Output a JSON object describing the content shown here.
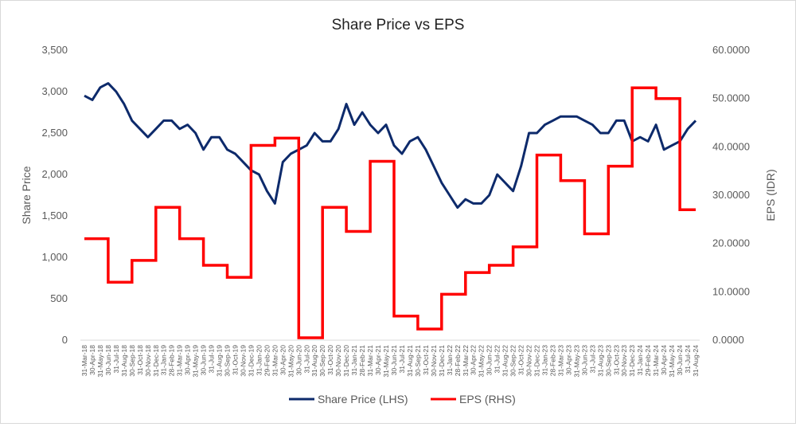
{
  "chart_data": {
    "type": "line",
    "title": "Share Price vs EPS",
    "ylabel_left": "Share Price",
    "ylabel_right": "EPS (IDR)",
    "ylim_left": [
      0,
      3500
    ],
    "ylim_right": [
      0,
      60
    ],
    "yticks_left": [
      "0",
      "500",
      "1,000",
      "1,500",
      "2,000",
      "2,500",
      "3,000",
      "3,500"
    ],
    "yticks_right": [
      "0.0000",
      "10.0000",
      "20.0000",
      "30.0000",
      "40.0000",
      "50.0000",
      "60.0000"
    ],
    "grid": false,
    "legend_position": "bottom",
    "x_labels": [
      "31-Mar-18",
      "30-Apr-18",
      "31-May-18",
      "30-Jun-18",
      "31-Jul-18",
      "31-Aug-18",
      "30-Sep-18",
      "31-Oct-18",
      "30-Nov-18",
      "31-Dec-18",
      "31-Jan-19",
      "28-Feb-19",
      "31-Mar-19",
      "30-Apr-19",
      "31-May-19",
      "30-Jun-19",
      "31-Jul-19",
      "31-Aug-19",
      "30-Sep-19",
      "31-Oct-19",
      "30-Nov-19",
      "31-Dec-19",
      "31-Jan-20",
      "29-Feb-20",
      "31-Mar-20",
      "30-Apr-20",
      "31-May-20",
      "30-Jun-20",
      "31-Jul-20",
      "31-Aug-20",
      "30-Sep-20",
      "31-Oct-20",
      "30-Nov-20",
      "31-Dec-20",
      "31-Jan-21",
      "28-Feb-21",
      "31-Mar-21",
      "30-Apr-21",
      "31-May-21",
      "30-Jun-21",
      "31-Jul-21",
      "31-Aug-21",
      "30-Sep-21",
      "31-Oct-21",
      "30-Nov-21",
      "31-Dec-21",
      "31-Jan-22",
      "28-Feb-22",
      "31-Mar-22",
      "30-Apr-22",
      "31-May-22",
      "30-Jun-22",
      "31-Jul-22",
      "31-Aug-22",
      "30-Sep-22",
      "31-Oct-22",
      "30-Nov-22",
      "31-Dec-22",
      "31-Jan-23",
      "28-Feb-23",
      "31-Mar-23",
      "30-Apr-23",
      "31-May-23",
      "30-Jun-23",
      "31-Jul-23",
      "31-Aug-23",
      "30-Sep-23",
      "31-Oct-23",
      "30-Nov-23",
      "31-Dec-23",
      "31-Jan-24",
      "29-Feb-24",
      "31-Mar-24",
      "30-Apr-24",
      "31-May-24",
      "30-Jun-24",
      "31-Jul-24",
      "31-Aug-24"
    ],
    "series": [
      {
        "name": "Share Price (LHS)",
        "axis": "left",
        "color": "#0d2a6b",
        "x": [
          "31-Mar-18",
          "30-Apr-18",
          "31-May-18",
          "30-Jun-18",
          "31-Jul-18",
          "31-Aug-18",
          "30-Sep-18",
          "31-Oct-18",
          "30-Nov-18",
          "31-Dec-18",
          "31-Jan-19",
          "28-Feb-19",
          "31-Mar-19",
          "30-Apr-19",
          "31-May-19",
          "30-Jun-19",
          "31-Jul-19",
          "31-Aug-19",
          "30-Sep-19",
          "31-Oct-19",
          "30-Nov-19",
          "31-Dec-19",
          "31-Jan-20",
          "29-Feb-20",
          "31-Mar-20",
          "30-Apr-20",
          "31-May-20",
          "30-Jun-20",
          "31-Jul-20",
          "31-Aug-20",
          "30-Sep-20",
          "31-Oct-20",
          "30-Nov-20",
          "31-Dec-20",
          "31-Jan-21",
          "28-Feb-21",
          "31-Mar-21",
          "30-Apr-21",
          "31-May-21",
          "30-Jun-21",
          "31-Jul-21",
          "31-Aug-21",
          "30-Sep-21",
          "31-Oct-21",
          "30-Nov-21",
          "31-Dec-21",
          "31-Jan-22",
          "28-Feb-22",
          "31-Mar-22",
          "30-Apr-22",
          "31-May-22",
          "30-Jun-22",
          "31-Jul-22",
          "31-Aug-22",
          "30-Sep-22",
          "31-Oct-22",
          "30-Nov-22",
          "31-Dec-22",
          "31-Jan-23",
          "28-Feb-23",
          "31-Mar-23",
          "30-Apr-23",
          "31-May-23",
          "30-Jun-23",
          "31-Jul-23",
          "31-Aug-23",
          "30-Sep-23",
          "31-Oct-23",
          "30-Nov-23",
          "31-Dec-23",
          "31-Jan-24",
          "29-Feb-24",
          "31-Mar-24",
          "30-Apr-24",
          "31-May-24",
          "30-Jun-24",
          "31-Jul-24",
          "31-Aug-24"
        ],
        "values": [
          2950,
          2900,
          3050,
          3100,
          3000,
          2850,
          2650,
          2550,
          2450,
          2550,
          2650,
          2650,
          2550,
          2600,
          2500,
          2300,
          2450,
          2450,
          2300,
          2250,
          2150,
          2050,
          2000,
          1800,
          1650,
          2150,
          2250,
          2300,
          2350,
          2500,
          2400,
          2400,
          2550,
          2850,
          2600,
          2750,
          2600,
          2500,
          2600,
          2350,
          2250,
          2400,
          2450,
          2300,
          2100,
          1900,
          1750,
          1600,
          1700,
          1650,
          1650,
          1750,
          2000,
          1900,
          1800,
          2100,
          2500,
          2500,
          2600,
          2650,
          2700,
          2700,
          2700,
          2650,
          2600,
          2500,
          2500,
          2650,
          2650,
          2400,
          2450,
          2400,
          2600,
          2300,
          2350,
          2400,
          2550,
          2650
        ]
      },
      {
        "name": "EPS (RHS)",
        "axis": "right",
        "color": "#ff0000",
        "step": true,
        "x": [
          "31-Mar-18",
          "30-Jun-18",
          "30-Sep-18",
          "31-Dec-18",
          "31-Mar-19",
          "30-Jun-19",
          "30-Sep-19",
          "31-Dec-19",
          "31-Mar-20",
          "30-Jun-20",
          "30-Sep-20",
          "31-Dec-20",
          "31-Mar-21",
          "30-Jun-21",
          "30-Sep-21",
          "31-Dec-21",
          "31-Mar-22",
          "30-Jun-22",
          "30-Sep-22",
          "31-Dec-22",
          "31-Mar-23",
          "30-Jun-23",
          "30-Sep-23",
          "31-Dec-23",
          "31-Mar-24",
          "30-Jun-24",
          "31-Aug-24"
        ],
        "values": [
          21.0,
          12.0,
          16.5,
          27.5,
          21.0,
          15.5,
          13.0,
          40.3,
          41.8,
          0.5,
          27.5,
          22.5,
          37.0,
          5.0,
          2.3,
          9.5,
          14.0,
          15.5,
          19.3,
          38.3,
          33.0,
          22.0,
          36.0,
          52.2,
          50.0,
          27.0,
          27.0
        ]
      }
    ]
  }
}
